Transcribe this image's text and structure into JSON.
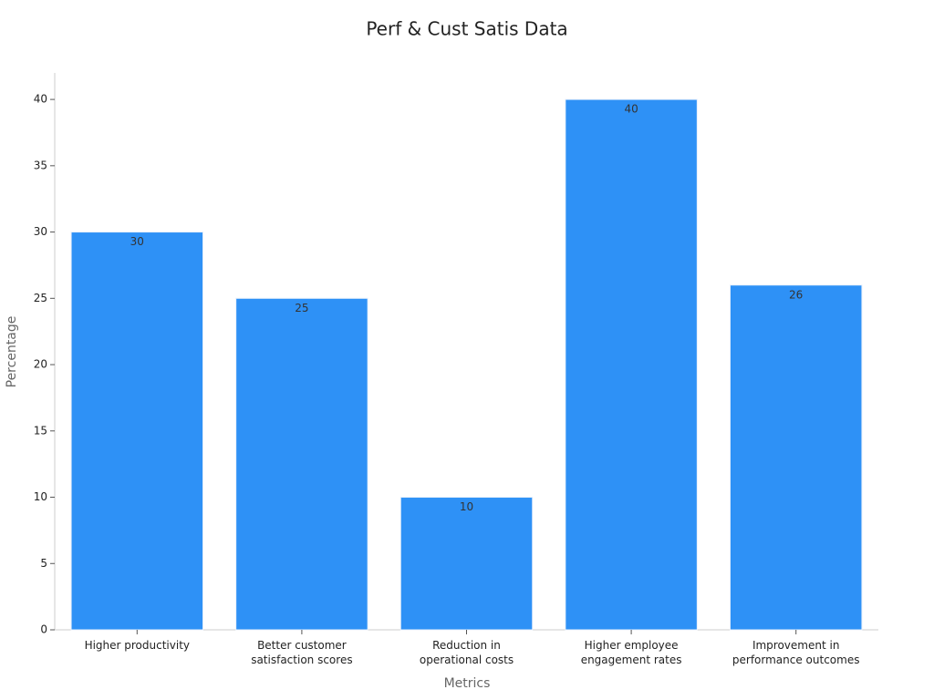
{
  "chart_data": {
    "type": "bar",
    "title": "Perf & Cust Satis Data",
    "x_label": "Metrics",
    "y_label": "Percentage",
    "categories": [
      "Higher productivity",
      "Better customer\nsatisfaction scores",
      "Reduction in\noperational costs",
      "Higher employee\nengagement rates",
      "Improvement in\nperformance outcomes"
    ],
    "values": [
      30,
      25,
      10,
      40,
      26
    ],
    "color": "#2e91f6",
    "ylim": [
      0,
      42
    ],
    "yticks": [
      0,
      5,
      10,
      15,
      20,
      25,
      30,
      35,
      40
    ]
  }
}
